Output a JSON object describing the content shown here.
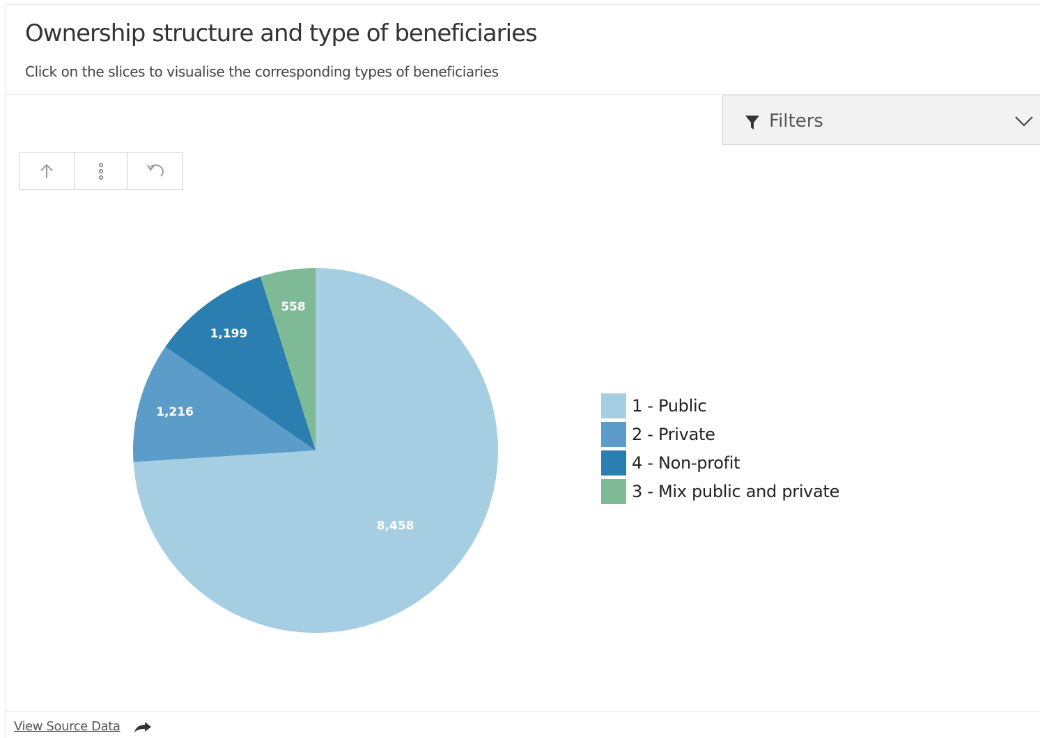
{
  "header": {
    "title": "Ownership structure and type of beneficiaries",
    "subtitle": "Click on the slices to visualise the corresponding types of beneficiaries"
  },
  "filters": {
    "label": "Filters",
    "icon": "funnel-icon",
    "toggle_icon": "chevron-down-icon"
  },
  "toolbar": {
    "buttons": [
      {
        "name": "drill-up",
        "icon": "arrow-up-icon"
      },
      {
        "name": "options",
        "icon": "vertical-dots-icon"
      },
      {
        "name": "undo",
        "icon": "undo-icon"
      }
    ]
  },
  "footer": {
    "source_link": "View Source Data",
    "source_icon": "share-arrow-icon"
  },
  "chart_data": {
    "type": "pie",
    "title": "Ownership structure and type of beneficiaries",
    "categories": [
      "1 - Public",
      "2 - Private",
      "4 - Non-profit",
      "3 - Mix public and private"
    ],
    "values": [
      8458,
      1216,
      1199,
      558
    ],
    "labels": [
      "8,458",
      "1,216",
      "1,199",
      "558"
    ],
    "colors": [
      "#a6cee3",
      "#5b9cc9",
      "#2b7eb0",
      "#7dba95"
    ],
    "label_colors": [
      "#ffffff",
      "#ffffff",
      "#ffffff",
      "#ffffff"
    ],
    "legend_position": "right",
    "start": "12 o'clock, clockwise"
  }
}
